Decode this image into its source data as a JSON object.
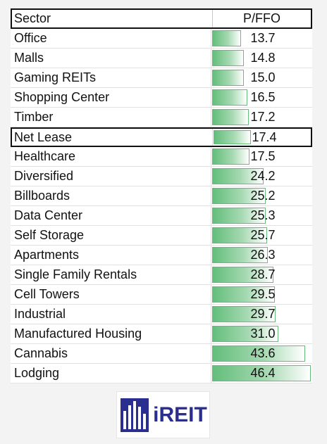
{
  "table": {
    "header": {
      "sector": "Sector",
      "metric": "P/FFO"
    },
    "rows": [
      {
        "sector": "Office",
        "value": "13.7",
        "v": 13.7
      },
      {
        "sector": "Malls",
        "value": "14.8",
        "v": 14.8
      },
      {
        "sector": "Gaming REITs",
        "value": "15.0",
        "v": 15.0
      },
      {
        "sector": "Shopping Center",
        "value": "16.5",
        "v": 16.5
      },
      {
        "sector": "Timber",
        "value": "17.2",
        "v": 17.2
      },
      {
        "sector": "Net Lease",
        "value": "17.4",
        "v": 17.4,
        "highlight": true
      },
      {
        "sector": "Healthcare",
        "value": "17.5",
        "v": 17.5
      },
      {
        "sector": "Diversified",
        "value": "24.2",
        "v": 24.2
      },
      {
        "sector": "Billboards",
        "value": "25.2",
        "v": 25.2
      },
      {
        "sector": "Data Center",
        "value": "25.3",
        "v": 25.3
      },
      {
        "sector": "Self Storage",
        "value": "25.7",
        "v": 25.7
      },
      {
        "sector": "Apartments",
        "value": "26.3",
        "v": 26.3
      },
      {
        "sector": "Single Family Rentals",
        "value": "28.7",
        "v": 28.7
      },
      {
        "sector": "Cell Towers",
        "value": "29.5",
        "v": 29.5
      },
      {
        "sector": "Industrial",
        "value": "29.7",
        "v": 29.7
      },
      {
        "sector": "Manufactured Housing",
        "value": "31.0",
        "v": 31.0
      },
      {
        "sector": "Cannabis",
        "value": "43.6",
        "v": 43.6
      },
      {
        "sector": "Lodging",
        "value": "46.4",
        "v": 46.4
      }
    ]
  },
  "logo": {
    "text": "iREIT",
    "icon": "building-bars-icon"
  },
  "colors": {
    "bar_green": "#63be7b",
    "logo_blue": "#2a2f8f"
  }
}
